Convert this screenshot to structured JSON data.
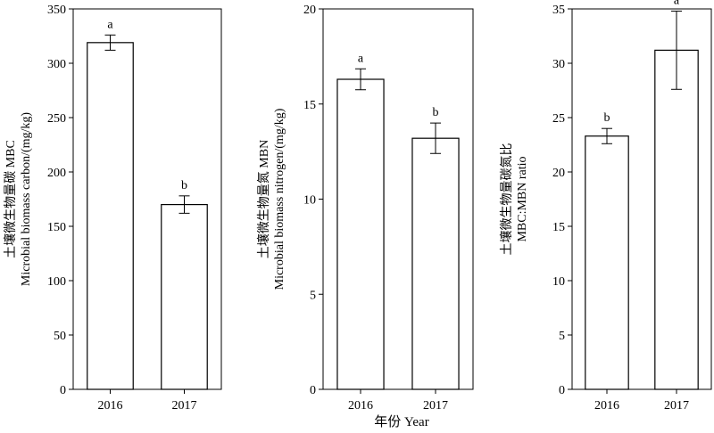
{
  "xlabel": "年份 Year",
  "chart_data": [
    {
      "type": "bar",
      "categories": [
        "2016",
        "2017"
      ],
      "values": [
        319,
        170
      ],
      "errors": [
        7,
        8
      ],
      "letters": [
        "a",
        "b"
      ],
      "ylabel_lines": [
        "土壤微生物量碳 MBC",
        "Microbial biomass carbon/(mg/kg)"
      ],
      "ylim": [
        0,
        350
      ],
      "yticks": [
        0,
        50,
        100,
        150,
        200,
        250,
        300,
        350
      ],
      "grid": false
    },
    {
      "type": "bar",
      "categories": [
        "2016",
        "2017"
      ],
      "values": [
        16.3,
        13.2
      ],
      "errors": [
        0.55,
        0.8
      ],
      "letters": [
        "a",
        "b"
      ],
      "ylabel_lines": [
        "土壤微生物量氮 MBN",
        "Microbial biomass nitrogen/(mg/kg)"
      ],
      "ylim": [
        0,
        20
      ],
      "yticks": [
        0,
        5,
        10,
        15,
        20
      ],
      "grid": false
    },
    {
      "type": "bar",
      "categories": [
        "2016",
        "2017"
      ],
      "values": [
        23.3,
        31.2
      ],
      "errors": [
        0.7,
        3.6
      ],
      "letters": [
        "b",
        "a"
      ],
      "ylabel_lines": [
        "土壤微生物量碳氮比",
        "MBC:MBN ratio"
      ],
      "ylim": [
        0,
        35
      ],
      "yticks": [
        0,
        5,
        10,
        15,
        20,
        25,
        30,
        35
      ],
      "grid": false
    }
  ]
}
